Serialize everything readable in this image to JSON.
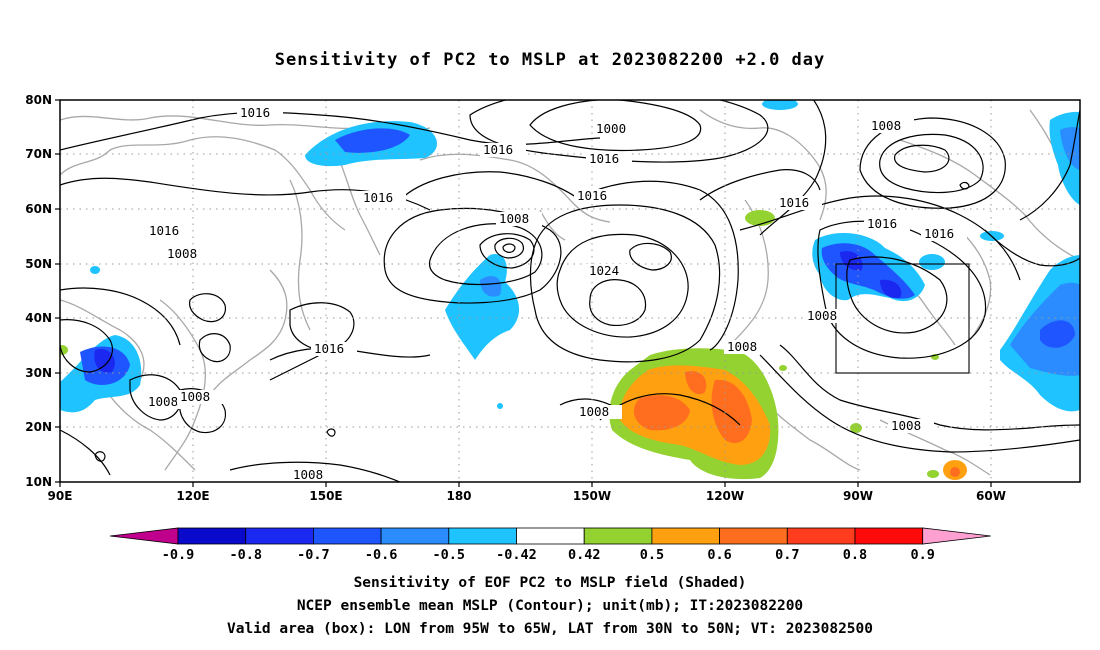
{
  "title": "Sensitivity of PC2 to MSLP at 2023082200 +2.0 day",
  "map": {
    "lat_labels": [
      "80N",
      "70N",
      "60N",
      "50N",
      "40N",
      "30N",
      "20N",
      "10N"
    ],
    "lon_labels": [
      "90E",
      "120E",
      "150E",
      "180",
      "150W",
      "120W",
      "90W",
      "60W"
    ],
    "valid_box": {
      "lon_from": "95W",
      "lon_to": "65W",
      "lat_from": "30N",
      "lat_to": "50N"
    },
    "contour_labels": [
      "1016",
      "1000",
      "1016",
      "1016",
      "1008",
      "1016",
      "1016",
      "1008",
      "1016",
      "1016",
      "1008",
      "1024",
      "1016",
      "1016",
      "1008",
      "1016",
      "1008",
      "1008",
      "1008",
      "1008",
      "1008",
      "1008"
    ]
  },
  "colorbar": {
    "labels": [
      "-0.9",
      "-0.8",
      "-0.7",
      "-0.6",
      "-0.5",
      "-0.42",
      "0.42",
      "0.5",
      "0.6",
      "0.7",
      "0.8",
      "0.9"
    ],
    "colors": [
      "#c0008c",
      "#0a0acc",
      "#1a28f0",
      "#1f55ff",
      "#2a8cff",
      "#1ec3ff",
      "#ffffff",
      "#94d232",
      "#ffa010",
      "#ff6e1e",
      "#ff3c1e",
      "#ff0a0a",
      "#ffa0d2"
    ]
  },
  "captions": {
    "line1": "Sensitivity of EOF PC2 to MSLP field (Shaded)",
    "line2": "NCEP ensemble mean MSLP (Contour); unit(mb); IT:2023082200",
    "line3": "Valid area (box): LON from 95W to 65W, LAT from 30N to 50N; VT: 2023082500"
  }
}
